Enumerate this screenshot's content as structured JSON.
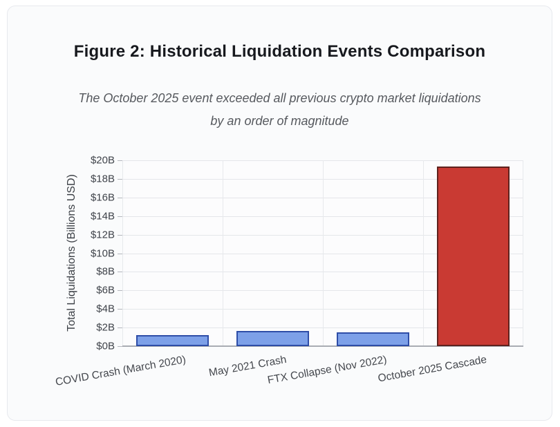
{
  "figure": {
    "title": "Figure 2: Historical Liquidation Events Comparison",
    "subtitle_lines": [
      "The October 2025 event exceeded all previous crypto market liquidations",
      "by an order of magnitude"
    ]
  },
  "chart_data": {
    "type": "bar",
    "categories": [
      "COVID Crash (March 2020)",
      "May 2021 Crash",
      "FTX Collapse (Nov 2022)",
      "October 2025 Cascade"
    ],
    "values": [
      1.2,
      1.6,
      1.5,
      19.3
    ],
    "title": "Figure 2: Historical Liquidation Events Comparison",
    "xlabel": "",
    "ylabel": "Total Liquidations (Billions USD)",
    "ylim": [
      0,
      20
    ],
    "yticks": [
      0,
      2,
      4,
      6,
      8,
      10,
      12,
      14,
      16,
      18,
      20
    ],
    "ytick_labels": [
      "$0B",
      "$2B",
      "$4B",
      "$6B",
      "$8B",
      "$10B",
      "$12B",
      "$14B",
      "$16B",
      "$18B",
      "$20B"
    ],
    "grid": true,
    "legend": "none",
    "xtick_rotation_deg": -10,
    "bar_fill_colors": [
      "#7DA0E8",
      "#7DA0E8",
      "#7DA0E8",
      "#C93A33"
    ],
    "bar_edge_colors": [
      "#2E4DA7",
      "#2E4DA7",
      "#2E4DA7",
      "#5E211D"
    ]
  },
  "colors": {
    "card_background": "#fafbfc",
    "card_border": "#e7e9ee",
    "title_text": "#17191e",
    "subtitle_text": "#56595e",
    "axis_text": "#3f434a",
    "gridline": "#e4e6ea",
    "axis_line": "#a9acb3",
    "highlight_red": "#C93A33",
    "series_blue": "#7DA0E8"
  }
}
